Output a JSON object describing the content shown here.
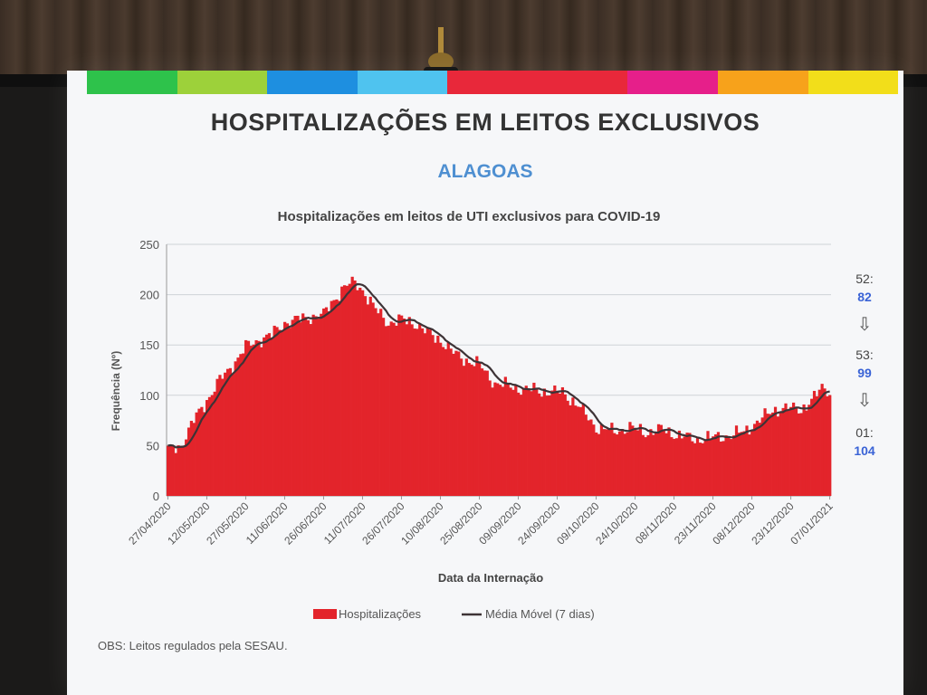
{
  "slide": {
    "title": "HOSPITALIZAÇÕES EM LEITOS EXCLUSIVOS",
    "subtitle": "ALAGOAS",
    "obs": "OBS: Leitos regulados pela SESAU.",
    "stripe_colors": [
      "#2ec24b",
      "#9dd13a",
      "#1e8fe0",
      "#4fc3ef",
      "#e8283a",
      "#e8283a",
      "#e61f8a",
      "#f7a21b",
      "#f2de1a"
    ]
  },
  "side_notes": [
    {
      "week": "52:",
      "value": "82"
    },
    {
      "week": "53:",
      "value": "99"
    },
    {
      "week": "01:",
      "value": "104"
    }
  ],
  "side_arrow": "⇩",
  "chart_data": {
    "type": "bar",
    "title": "Hospitalizações em leitos de UTI exclusivos para COVID-19",
    "xlabel": "Data da Internação",
    "ylabel": "Frequência (Nº)",
    "ylim": [
      0,
      250
    ],
    "yticks": [
      0,
      50,
      100,
      150,
      200,
      250
    ],
    "grid": true,
    "legend_position": "bottom",
    "colors": {
      "bars": "#e3242b",
      "line": "#3d3336"
    },
    "x_tick_labels": [
      "27/04/2020",
      "12/05/2020",
      "27/05/2020",
      "11/06/2020",
      "26/06/2020",
      "11/07/2020",
      "26/07/2020",
      "10/08/2020",
      "25/08/2020",
      "09/09/2020",
      "24/09/2020",
      "09/10/2020",
      "24/10/2020",
      "08/11/2020",
      "23/11/2020",
      "08/12/2020",
      "23/12/2020",
      "07/01/2021"
    ],
    "x_range": [
      "2020-04-27",
      "2021-01-07"
    ],
    "keypoints": [
      [
        "2020-04-27",
        45
      ],
      [
        "2020-05-02",
        50
      ],
      [
        "2020-05-07",
        75
      ],
      [
        "2020-05-12",
        95
      ],
      [
        "2020-05-17",
        115
      ],
      [
        "2020-05-22",
        130
      ],
      [
        "2020-05-27",
        148
      ],
      [
        "2020-06-01",
        155
      ],
      [
        "2020-06-06",
        160
      ],
      [
        "2020-06-11",
        172
      ],
      [
        "2020-06-16",
        175
      ],
      [
        "2020-06-21",
        178
      ],
      [
        "2020-06-26",
        180
      ],
      [
        "2020-06-30",
        195
      ],
      [
        "2020-07-04",
        208
      ],
      [
        "2020-07-08",
        212
      ],
      [
        "2020-07-11",
        205
      ],
      [
        "2020-07-16",
        185
      ],
      [
        "2020-07-21",
        172
      ],
      [
        "2020-07-26",
        175
      ],
      [
        "2020-07-31",
        172
      ],
      [
        "2020-08-05",
        162
      ],
      [
        "2020-08-10",
        155
      ],
      [
        "2020-08-15",
        142
      ],
      [
        "2020-08-20",
        135
      ],
      [
        "2020-08-25",
        130
      ],
      [
        "2020-08-31",
        112
      ],
      [
        "2020-09-09",
        107
      ],
      [
        "2020-09-18",
        104
      ],
      [
        "2020-09-26",
        103
      ],
      [
        "2020-10-02",
        90
      ],
      [
        "2020-10-09",
        68
      ],
      [
        "2020-10-16",
        64
      ],
      [
        "2020-10-22",
        68
      ],
      [
        "2020-10-28",
        63
      ],
      [
        "2020-11-03",
        66
      ],
      [
        "2020-11-10",
        60
      ],
      [
        "2020-11-16",
        56
      ],
      [
        "2020-11-23",
        58
      ],
      [
        "2020-11-30",
        60
      ],
      [
        "2020-12-05",
        64
      ],
      [
        "2020-12-11",
        75
      ],
      [
        "2020-12-16",
        85
      ],
      [
        "2020-12-21",
        87
      ],
      [
        "2020-12-27",
        86
      ],
      [
        "2021-01-01",
        97
      ],
      [
        "2021-01-04",
        108
      ],
      [
        "2021-01-07",
        104
      ]
    ],
    "series": [
      {
        "name": "Hospitalizações",
        "type": "bar"
      },
      {
        "name": "Média Móvel (7 dias)",
        "type": "line"
      }
    ]
  }
}
